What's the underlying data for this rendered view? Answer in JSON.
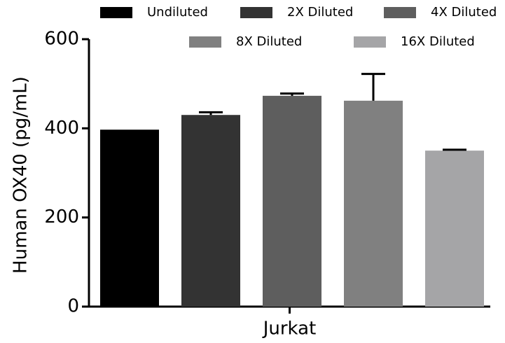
{
  "chart_data": {
    "type": "bar",
    "y_label": "Human OX40 (pg/mL)",
    "categories": [
      "Jurkat"
    ],
    "series": [
      {
        "name": "Undiluted",
        "color": "#000000",
        "values": [
          397
        ]
      },
      {
        "name": "2X Diluted",
        "color": "#333333",
        "values": [
          430
        ],
        "errors": [
          6
        ]
      },
      {
        "name": "4X Diluted",
        "color": "#5e5e5e",
        "values": [
          473
        ],
        "errors": [
          5
        ]
      },
      {
        "name": "8X Diluted",
        "color": "#808080",
        "values": [
          462
        ],
        "errors": [
          60
        ]
      },
      {
        "name": "16X Diluted",
        "color": "#a5a5a7",
        "values": [
          350
        ],
        "errors": [
          2
        ]
      }
    ],
    "ylim": [
      0,
      600
    ],
    "yticks": [
      0,
      200,
      400,
      600
    ]
  }
}
